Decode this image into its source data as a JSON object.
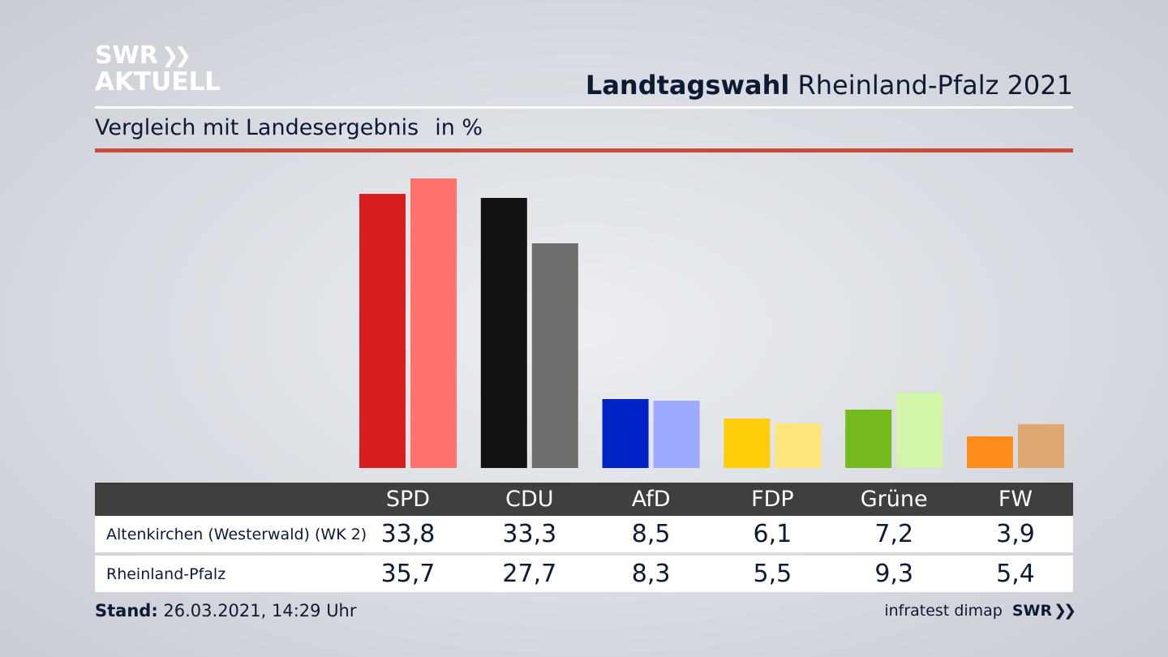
{
  "logo": {
    "line1": "SWR",
    "line2": "AKTUELL",
    "chevrons": "»"
  },
  "header": {
    "title_bold": "Landtagswahl",
    "title_rest": "Rheinland-Pfalz 2021"
  },
  "subtitle": {
    "text": "Vergleich mit Landesergebnis",
    "unit": "in %"
  },
  "colors": {
    "accent_rule": "#c9493d",
    "SPD": [
      "#d71f1f",
      "#ff726d"
    ],
    "CDU": [
      "#121212",
      "#6f6e6c"
    ],
    "AfD": [
      "#0023c8",
      "#9cabff"
    ],
    "FDP": [
      "#ffcd0a",
      "#fee57a"
    ],
    "Grüne": [
      "#76bb1e",
      "#d3f5a9"
    ],
    "FW": [
      "#ff8c1a",
      "#dea872"
    ]
  },
  "chart_data": {
    "type": "bar",
    "categories": [
      "SPD",
      "CDU",
      "AfD",
      "FDP",
      "Grüne",
      "FW"
    ],
    "series": [
      {
        "name": "Altenkirchen (Westerwald) (WK 2)",
        "values": [
          33.8,
          33.3,
          8.5,
          6.1,
          7.2,
          3.9
        ],
        "labels": [
          "33,8",
          "33,3",
          "8,5",
          "6,1",
          "7,2",
          "3,9"
        ]
      },
      {
        "name": "Rheinland-Pfalz",
        "values": [
          35.7,
          27.7,
          8.3,
          5.5,
          9.3,
          5.4
        ],
        "labels": [
          "35,7",
          "27,7",
          "8,3",
          "5,5",
          "9,3",
          "5,4"
        ]
      }
    ],
    "ylim": [
      0,
      38
    ],
    "grid": false,
    "legend": "table-below"
  },
  "footer": {
    "stand_label": "Stand:",
    "stand_value": "26.03.2021, 14:29 Uhr",
    "source": "infratest dimap",
    "source_logo": "SWR",
    "source_chevrons": "»"
  }
}
